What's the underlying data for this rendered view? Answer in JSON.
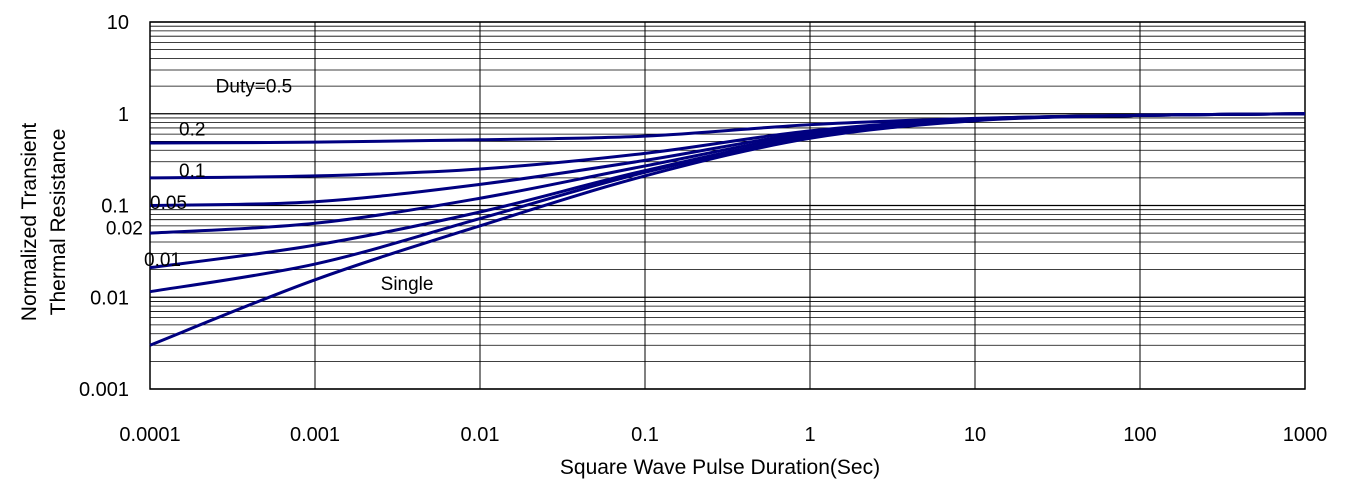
{
  "chart_data": {
    "type": "line",
    "title": "",
    "xlabel": "Square Wave Pulse Duration(Sec)",
    "ylabel_lines": [
      "Normalized Transient",
      "Thermal Resistance"
    ],
    "x_scale": "log",
    "y_scale": "log",
    "xlim": [
      0.0001,
      1000
    ],
    "ylim": [
      0.001,
      10
    ],
    "x_ticks": [
      "0.0001",
      "0.001",
      "0.01",
      "0.1",
      "1",
      "10",
      "100",
      "1000"
    ],
    "y_ticks": [
      "0.001",
      "0.01",
      "0.1",
      "1",
      "10"
    ],
    "grid": true,
    "line_color": "#000080",
    "series": [
      {
        "name": "Duty=0.5",
        "x": [
          0.0001,
          0.001,
          0.01,
          0.1,
          1,
          10,
          100,
          1000
        ],
        "y": [
          0.48,
          0.49,
          0.52,
          0.57,
          0.76,
          0.89,
          0.96,
          1.0
        ]
      },
      {
        "name": "0.2",
        "x": [
          0.0001,
          0.001,
          0.01,
          0.1,
          1,
          10,
          100,
          1000
        ],
        "y": [
          0.2,
          0.21,
          0.25,
          0.37,
          0.65,
          0.88,
          0.96,
          1.0
        ]
      },
      {
        "name": "0.1",
        "x": [
          0.0001,
          0.001,
          0.01,
          0.1,
          1,
          10,
          100,
          1000
        ],
        "y": [
          0.1,
          0.11,
          0.17,
          0.31,
          0.62,
          0.87,
          0.96,
          1.0
        ]
      },
      {
        "name": "0.05",
        "x": [
          0.0001,
          0.001,
          0.01,
          0.1,
          1,
          10,
          100,
          1000
        ],
        "y": [
          0.05,
          0.064,
          0.12,
          0.27,
          0.59,
          0.86,
          0.96,
          1.0
        ]
      },
      {
        "name": "0.02",
        "x": [
          0.0001,
          0.001,
          0.01,
          0.1,
          1,
          10,
          100,
          1000
        ],
        "y": [
          0.021,
          0.037,
          0.085,
          0.24,
          0.56,
          0.85,
          0.96,
          1.0
        ]
      },
      {
        "name": "0.01",
        "x": [
          0.0001,
          0.001,
          0.01,
          0.1,
          1,
          10,
          100,
          1000
        ],
        "y": [
          0.0115,
          0.023,
          0.072,
          0.23,
          0.55,
          0.85,
          0.96,
          1.0
        ]
      },
      {
        "name": "Single",
        "x": [
          0.0001,
          0.001,
          0.01,
          0.1,
          1,
          10,
          100,
          1000
        ],
        "y": [
          0.003,
          0.0155,
          0.06,
          0.21,
          0.54,
          0.84,
          0.96,
          1.0
        ]
      }
    ],
    "curve_labels": [
      {
        "text": "Duty=0.5",
        "x": 0.00025,
        "y": 1.7
      },
      {
        "text": "0.2",
        "x": 0.00015,
        "y": 0.58
      },
      {
        "text": "0.1",
        "x": 0.00015,
        "y": 0.205
      },
      {
        "text": "0.05",
        "x": 0.0001,
        "y": 0.092
      },
      {
        "text": "0.02",
        "x": 5.4e-05,
        "y": 0.048
      },
      {
        "text": "0.01",
        "x": 9.2e-05,
        "y": 0.022
      },
      {
        "text": "Single",
        "x": 0.0025,
        "y": 0.012
      }
    ]
  }
}
